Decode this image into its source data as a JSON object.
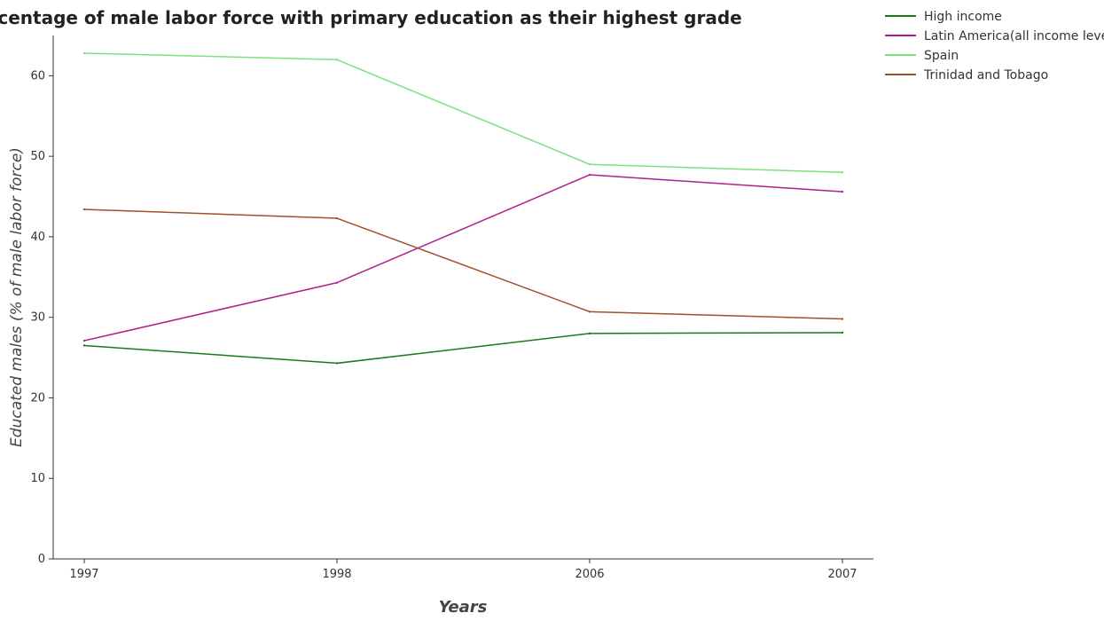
{
  "chart_data": {
    "type": "line",
    "title": "Percentage of male labor force with primary education as their highest grade",
    "xlabel": "Years",
    "ylabel": "Educated males (% of male labor force)",
    "categories": [
      "1997",
      "1998",
      "2006",
      "2007"
    ],
    "ylim": [
      0,
      65
    ],
    "yticks": [
      0,
      10,
      20,
      30,
      40,
      50,
      60
    ],
    "legend_position": "top-right",
    "grid": false,
    "series": [
      {
        "name": "High income",
        "color": "#1a7a1a",
        "values": [
          26.5,
          24.3,
          28.0,
          28.1
        ]
      },
      {
        "name": "Latin America(all income levels)",
        "color": "#b0208f",
        "values": [
          27.1,
          34.3,
          47.7,
          45.6
        ]
      },
      {
        "name": "Spain",
        "color": "#7ee07e",
        "values": [
          62.8,
          62.0,
          49.0,
          48.0
        ]
      },
      {
        "name": "Trinidad and Tobago",
        "color": "#a0522d",
        "values": [
          43.4,
          42.3,
          30.7,
          29.8
        ]
      }
    ]
  }
}
